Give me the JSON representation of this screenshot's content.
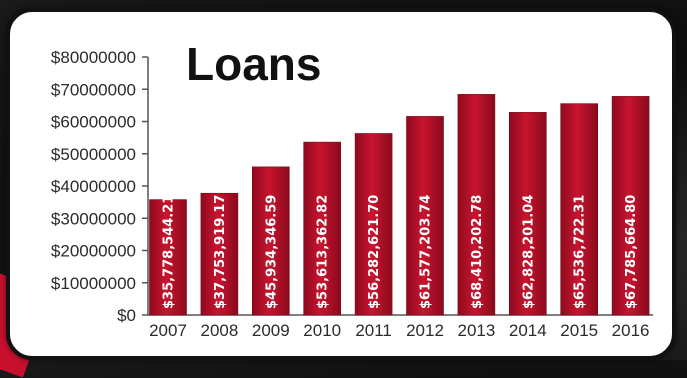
{
  "chart_data": {
    "type": "bar",
    "title": "Loans",
    "xlabel": "",
    "ylabel": "",
    "categories": [
      "2007",
      "2008",
      "2009",
      "2010",
      "2011",
      "2012",
      "2013",
      "2014",
      "2015",
      "2016"
    ],
    "values": [
      35778544.21,
      37753919.17,
      45934346.59,
      53613362.82,
      56282621.7,
      61577203.74,
      68410202.78,
      62828201.04,
      65536722.31,
      67785664.8
    ],
    "data_labels": [
      "$35,778,544.21",
      "$37,753,919.17",
      "$45,934,346.59",
      "$53,613,362.82",
      "$56,282,621.70",
      "$61,577,203.74",
      "$68,410,202.78",
      "$62,828,201.04",
      "$65,536,722.31",
      "$67,785,664.80"
    ],
    "ylim": [
      0,
      80000000
    ],
    "yticks": [
      0,
      10000000,
      20000000,
      30000000,
      40000000,
      50000000,
      60000000,
      70000000,
      80000000
    ],
    "ytick_labels": [
      "$0",
      "$10000000",
      "$20000000",
      "$30000000",
      "$40000000",
      "$50000000",
      "$60000000",
      "$70000000",
      "$80000000"
    ],
    "grid": false,
    "bar_color": "#b8102a"
  }
}
